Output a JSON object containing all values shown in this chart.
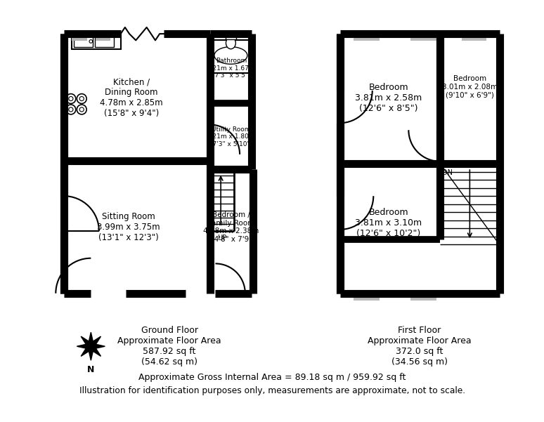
{
  "bg_color": "#ffffff",
  "wall_color": "#000000",
  "footer_line1": "Approximate Gross Internal Area = 89.18 sq m / 959.92 sq ft",
  "footer_line2": "Illustration for identification purposes only, measurements are approximate, not to scale.",
  "gf_label": "Ground Floor\nApproximate Floor Area\n587.92 sq ft\n(54.62 sq m)",
  "ff_label": "First Floor\nApproximate Floor Area\n372.0 sq ft\n(34.56 sq m)",
  "kitchen_label": "Kitchen /\nDining Room\n4.78m x 2.85m\n(15'8\" x 9'4\")",
  "sitting_label": "Sitting Room\n3.99m x 3.75m\n(13'1\" x 12'3\")",
  "bedroom_family_label": "Bedroom /\nFamily Room\n4.48m x 2.38m\n(14'8\" x 7'9\")",
  "bathroom_label": "Bathroom\n2.21m x 1.67m\n(7'3\" x 5'5\")",
  "utility_label": "Utility Room\n2.21m x 1.80m\n(7'3\" x 5'10\")",
  "ff_bed1_label": "Bedroom\n3.81m x 2.58m\n(12'6\" x 8'5\")",
  "ff_bed2_label": "Bedroom\n3.81m x 3.10m\n(12'6\" x 10'2\")",
  "ff_bed3_label": "Bedroom\n3.01m x 2.08m\n(9'10\" x 6'9\")"
}
